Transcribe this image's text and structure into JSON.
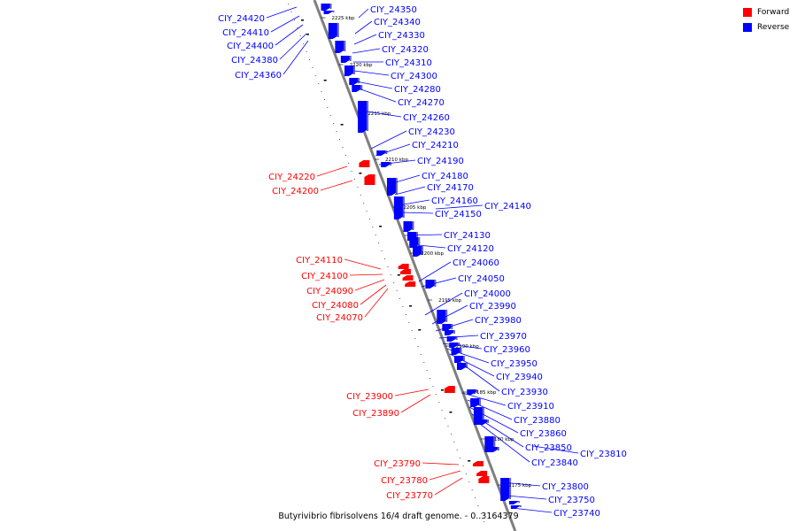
{
  "title": "Butyrivibrio fibrisolvens 16/4 draft genome. - 0..3164379",
  "legend": [
    {
      "label": "Forward",
      "color": "#ff0000"
    },
    {
      "label": "Reverse",
      "color": "#0000ff"
    }
  ],
  "colors": {
    "forward": "#ff0000",
    "reverse": "#0000ff",
    "backbone": "#7f7f7f"
  },
  "ticks": [
    "2225 kbp",
    "2220 kbp",
    "2215 kbp",
    "2210 kbp",
    "2205 kbp",
    "2200 kbp",
    "2195 kbp",
    "2190 kbp",
    "2185 kbp",
    "2180 kbp",
    "2175 kbp"
  ],
  "reverse_labels": [
    "CIY_24350",
    "CIY_24340",
    "CIY_24330",
    "CIY_24320",
    "CIY_24310",
    "CIY_24300",
    "CIY_24280",
    "CIY_24270",
    "CIY_24260",
    "CIY_24230",
    "CIY_24210",
    "CIY_24190",
    "CIY_24180",
    "CIY_24170",
    "CIY_24160",
    "CIY_24150",
    "CIY_24140",
    "CIY_24130",
    "CIY_24120",
    "CIY_24060",
    "CIY_24050",
    "CIY_24000",
    "CIY_23990",
    "CIY_23980",
    "CIY_23970",
    "CIY_23960",
    "CIY_23950",
    "CIY_23940",
    "CIY_23930",
    "CIY_23910",
    "CIY_23880",
    "CIY_23860",
    "CIY_23850",
    "CIY_23840",
    "CIY_23810",
    "CIY_23800",
    "CIY_23750",
    "CIY_23740"
  ],
  "reverse_left_labels": [
    "CIY_24420",
    "CIY_24410",
    "CIY_24400",
    "CIY_24380",
    "CIY_24360"
  ],
  "forward_labels": [
    "CIY_24220",
    "CIY_24200",
    "CIY_24110",
    "CIY_24100",
    "CIY_24090",
    "CIY_24080",
    "CIY_24070",
    "CIY_23900",
    "CIY_23890",
    "CIY_23790",
    "CIY_23780",
    "CIY_23770"
  ]
}
